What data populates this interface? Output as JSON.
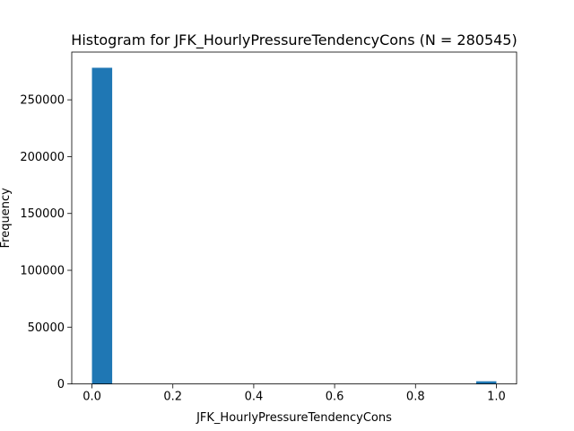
{
  "chart_data": {
    "type": "bar",
    "title": "Histogram for JFK_HourlyPressureTendencyCons (N = 280545)",
    "xlabel": "JFK_HourlyPressureTendencyCons",
    "ylabel": "Frequency",
    "xlim": [
      -0.05,
      1.05
    ],
    "ylim": [
      0,
      292000
    ],
    "x_ticks": [
      0.0,
      0.2,
      0.4,
      0.6,
      0.8,
      1.0
    ],
    "x_tick_labels": [
      "0.0",
      "0.2",
      "0.4",
      "0.6",
      "0.8",
      "1.0"
    ],
    "y_ticks": [
      0,
      50000,
      100000,
      150000,
      200000,
      250000
    ],
    "y_tick_labels": [
      "0",
      "50000",
      "100000",
      "150000",
      "200000",
      "250000"
    ],
    "bin_edges": [
      0.0,
      0.05,
      0.1,
      0.15,
      0.2,
      0.25,
      0.3,
      0.35,
      0.4,
      0.45,
      0.5,
      0.55,
      0.6,
      0.65,
      0.7,
      0.75,
      0.8,
      0.85,
      0.9,
      0.95,
      1.0
    ],
    "counts": [
      278200,
      0,
      0,
      0,
      0,
      0,
      0,
      0,
      0,
      0,
      0,
      0,
      0,
      0,
      0,
      0,
      0,
      0,
      0,
      2345
    ],
    "bar_color": "#1f77b4",
    "grid": false,
    "legend": false
  }
}
